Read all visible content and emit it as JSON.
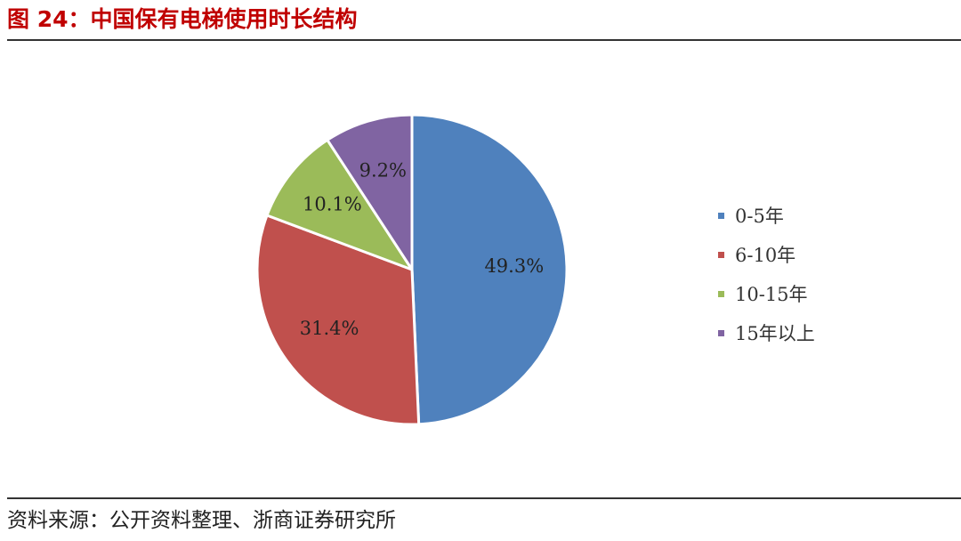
{
  "figure_title": "图 24：中国保有电梯使用时长结构",
  "source": "资料来源：公开资料整理、浙商证券研究所",
  "chart_data": {
    "type": "pie",
    "title": "图 24：中国保有电梯使用时长结构",
    "start_angle_deg": 0,
    "direction": "clockwise",
    "legend_position": "right",
    "slices": [
      {
        "label": "0-5年",
        "value": 49.3,
        "value_label": "49.3%",
        "color": "#4f81bd"
      },
      {
        "label": "6-10年",
        "value": 31.4,
        "value_label": "31.4%",
        "color": "#c0504d"
      },
      {
        "label": "10-15年",
        "value": 10.1,
        "value_label": "10.1%",
        "color": "#9bbb59"
      },
      {
        "label": "15年以上",
        "value": 9.2,
        "value_label": "9.2%",
        "color": "#8064a2"
      }
    ]
  }
}
